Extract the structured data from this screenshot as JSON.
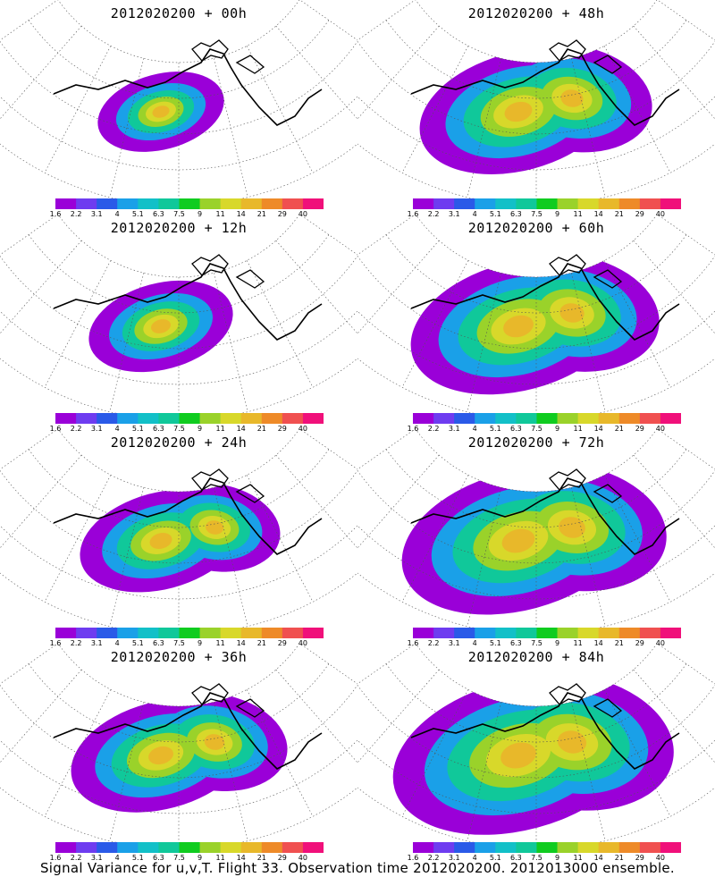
{
  "panels": [
    {
      "title": "2012020200 + 00h",
      "forecast_hour": 0
    },
    {
      "title": "2012020200 + 48h",
      "forecast_hour": 48
    },
    {
      "title": "2012020200 + 12h",
      "forecast_hour": 12
    },
    {
      "title": "2012020200 + 60h",
      "forecast_hour": 60
    },
    {
      "title": "2012020200 + 24h",
      "forecast_hour": 24
    },
    {
      "title": "2012020200 + 72h",
      "forecast_hour": 72
    },
    {
      "title": "2012020200 + 36h",
      "forecast_hour": 36
    },
    {
      "title": "2012020200 + 84h",
      "forecast_hour": 84
    }
  ],
  "colorbar": {
    "labels": [
      "1.6",
      "2.2",
      "3.1",
      "4",
      "5.1",
      "6.3",
      "7.5",
      "9",
      "11",
      "14",
      "21",
      "29",
      "40"
    ],
    "colors": [
      "#9a00d8",
      "#6e3cf0",
      "#2a5ae8",
      "#1aa0e8",
      "#12c0c8",
      "#10c89a",
      "#10cc20",
      "#9ad22a",
      "#d8d82a",
      "#e8b82a",
      "#ee8a28",
      "#f05050",
      "#f0107a"
    ]
  },
  "caption": "Signal Variance for u,v,T. Flight 33. Observation time 2012020200. 2012013000 ensemble."
}
